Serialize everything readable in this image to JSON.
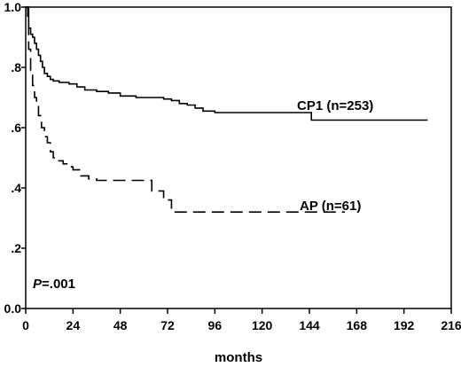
{
  "chart_data": {
    "type": "line",
    "title": "",
    "xlabel": "months",
    "ylabel": "",
    "xlim": [
      0,
      216
    ],
    "ylim": [
      0,
      1.0
    ],
    "x_ticks": [
      0,
      24,
      48,
      72,
      96,
      120,
      144,
      168,
      192,
      216
    ],
    "x_tick_labels": [
      "0",
      "24",
      "48",
      "72",
      "96",
      "120",
      "144",
      "168",
      "192",
      "216"
    ],
    "y_ticks": [
      0.0,
      0.2,
      0.4,
      0.6,
      0.8,
      1.0
    ],
    "y_tick_labels": [
      "0.0",
      ".2",
      ".4",
      ".6",
      ".8",
      "1.0"
    ],
    "grid": false,
    "annotation": "P=.001",
    "series": [
      {
        "name": "CP1 (n=253)",
        "style": "solid",
        "color": "#000000",
        "points": [
          [
            0,
            1.0
          ],
          [
            1,
            0.97
          ],
          [
            1.5,
            0.93
          ],
          [
            2.5,
            0.91
          ],
          [
            3.5,
            0.9
          ],
          [
            4.5,
            0.88
          ],
          [
            5.5,
            0.86
          ],
          [
            6.5,
            0.84
          ],
          [
            7.5,
            0.82
          ],
          [
            8.5,
            0.8
          ],
          [
            9.5,
            0.78
          ],
          [
            11,
            0.77
          ],
          [
            12.5,
            0.76
          ],
          [
            14,
            0.755
          ],
          [
            17,
            0.75
          ],
          [
            22,
            0.745
          ],
          [
            26,
            0.735
          ],
          [
            30,
            0.725
          ],
          [
            36,
            0.72
          ],
          [
            42,
            0.715
          ],
          [
            48,
            0.705
          ],
          [
            56,
            0.7
          ],
          [
            70,
            0.695
          ],
          [
            74,
            0.69
          ],
          [
            78,
            0.68
          ],
          [
            82,
            0.675
          ],
          [
            86,
            0.665
          ],
          [
            90,
            0.655
          ],
          [
            96,
            0.65
          ],
          [
            145,
            0.65
          ],
          [
            145,
            0.625
          ],
          [
            204,
            0.625
          ]
        ]
      },
      {
        "name": "AP (n=61)",
        "style": "dashed",
        "color": "#000000",
        "points": [
          [
            0,
            1.0
          ],
          [
            1.5,
            0.86
          ],
          [
            2.5,
            0.79
          ],
          [
            3.5,
            0.74
          ],
          [
            4.5,
            0.7
          ],
          [
            5.5,
            0.67
          ],
          [
            6.5,
            0.64
          ],
          [
            8,
            0.6
          ],
          [
            9.5,
            0.57
          ],
          [
            11,
            0.55
          ],
          [
            12.5,
            0.52
          ],
          [
            14,
            0.5
          ],
          [
            16,
            0.49
          ],
          [
            19,
            0.48
          ],
          [
            22,
            0.47
          ],
          [
            24,
            0.46
          ],
          [
            28,
            0.44
          ],
          [
            32,
            0.43
          ],
          [
            36,
            0.425
          ],
          [
            48,
            0.425
          ],
          [
            64,
            0.425
          ],
          [
            64,
            0.39
          ],
          [
            70,
            0.39
          ],
          [
            70,
            0.36
          ],
          [
            74,
            0.36
          ],
          [
            74,
            0.32
          ],
          [
            162,
            0.32
          ]
        ]
      }
    ]
  }
}
